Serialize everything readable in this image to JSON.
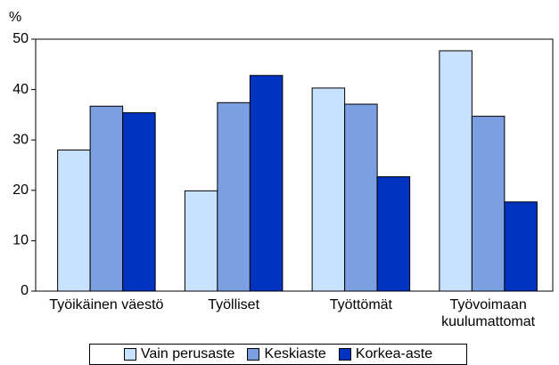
{
  "chart_data": {
    "type": "bar",
    "y_label": "%",
    "categories": [
      "Työikäinen väestö",
      "Työlliset",
      "Työttömät",
      "Työvoimaan\nkuulumattomat"
    ],
    "series": [
      {
        "name": "Vain perusaste",
        "color": "#c6e2ff",
        "values": [
          28.0,
          19.9,
          40.3,
          47.7
        ]
      },
      {
        "name": "Keskiaste",
        "color": "#7b9fe0",
        "values": [
          36.7,
          37.4,
          37.1,
          34.7
        ]
      },
      {
        "name": "Korkea-aste",
        "color": "#0033c0",
        "values": [
          35.4,
          42.8,
          22.7,
          17.7
        ]
      }
    ],
    "ylim": [
      0,
      50
    ],
    "yticks": [
      0,
      10,
      20,
      30,
      40,
      50
    ],
    "legend": "bottom"
  }
}
